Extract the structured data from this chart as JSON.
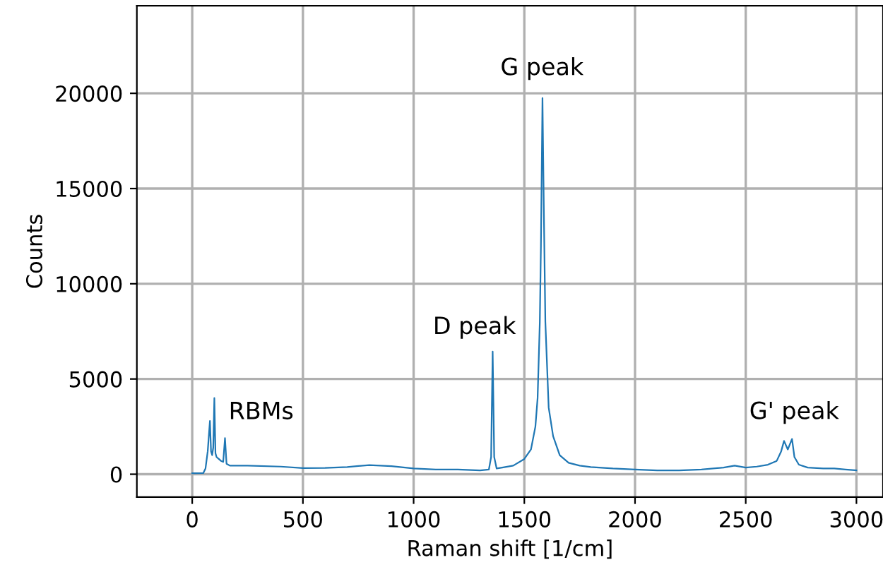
{
  "chart_data": {
    "type": "line",
    "xlabel": "Raman shift [1/cm]",
    "ylabel": "Counts",
    "x": [
      0,
      50,
      60,
      70,
      80,
      85,
      90,
      95,
      100,
      105,
      110,
      120,
      130,
      140,
      148,
      155,
      170,
      250,
      400,
      500,
      600,
      700,
      800,
      900,
      1000,
      1100,
      1200,
      1300,
      1340,
      1350,
      1357,
      1364,
      1375,
      1400,
      1450,
      1500,
      1530,
      1550,
      1560,
      1570,
      1575,
      1582,
      1588,
      1595,
      1610,
      1630,
      1660,
      1700,
      1750,
      1800,
      1900,
      2000,
      2100,
      2200,
      2300,
      2400,
      2450,
      2500,
      2550,
      2600,
      2640,
      2660,
      2673,
      2690,
      2709,
      2720,
      2740,
      2780,
      2850,
      2900,
      2950,
      3000
    ],
    "series": [
      {
        "color": "#1f77b4",
        "values": [
          50,
          60,
          300,
          1200,
          2800,
          1200,
          1000,
          1400,
          4000,
          1100,
          900,
          800,
          700,
          650,
          1900,
          550,
          450,
          450,
          400,
          320,
          330,
          380,
          480,
          420,
          300,
          250,
          250,
          200,
          250,
          900,
          6440,
          900,
          300,
          350,
          450,
          800,
          1300,
          2500,
          4000,
          8000,
          12000,
          19750,
          14000,
          8000,
          3500,
          2000,
          1000,
          600,
          450,
          380,
          300,
          250,
          200,
          200,
          250,
          350,
          450,
          350,
          400,
          500,
          700,
          1200,
          1750,
          1300,
          1850,
          900,
          500,
          350,
          300,
          300,
          250,
          200
        ]
      }
    ],
    "xlim": [
      -250,
      3120
    ],
    "ylim": [
      -1200,
      24600
    ],
    "xticks": [
      0,
      500,
      1000,
      1500,
      2000,
      2500,
      3000
    ],
    "yticks": [
      0,
      5000,
      10000,
      15000,
      20000
    ],
    "grid": true,
    "marker": "none",
    "line_style": "solid",
    "annotations": [
      "RBMs",
      "D peak",
      "G peak",
      "G' peak"
    ]
  }
}
